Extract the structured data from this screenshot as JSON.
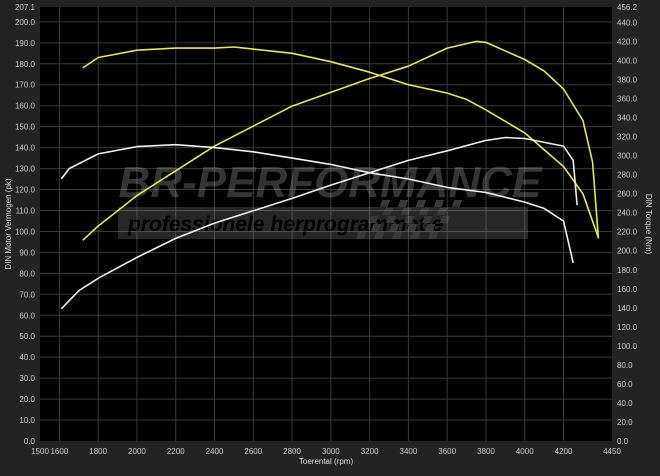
{
  "chart_data": {
    "type": "line",
    "xlabel": "Toerental (rpm)",
    "ylabel_left": "DIN Motor Vermogen (pk)",
    "ylabel_right": "DIN Torque (Nm)",
    "xlim": [
      1500,
      4450
    ],
    "ylim_left": [
      0,
      207.1
    ],
    "ylim_right": [
      0,
      456.2
    ],
    "x_ticks": [
      1500,
      1600,
      1800,
      2000,
      2200,
      2400,
      2600,
      2800,
      3000,
      3200,
      3400,
      3600,
      3800,
      4000,
      4200,
      4450
    ],
    "y_left_ticks": [
      "0.0",
      "10.0",
      "20.0",
      "30.0",
      "40.0",
      "50.0",
      "60.0",
      "70.0",
      "80.0",
      "90.0",
      "100.0",
      "110.0",
      "120.0",
      "130.0",
      "140.0",
      "150.0",
      "160.0",
      "170.0",
      "180.0",
      "190.0",
      "200.0",
      "207.1"
    ],
    "y_right_ticks": [
      "0.0",
      "20.0",
      "40.0",
      "60.0",
      "80.0",
      "100.0",
      "120.0",
      "140.0",
      "160.0",
      "180.0",
      "200.0",
      "220.0",
      "240.0",
      "260.0",
      "280.0",
      "300.0",
      "320.0",
      "340.0",
      "360.0",
      "380.0",
      "400.0",
      "420.0",
      "440.0",
      "456.2"
    ],
    "grid": true,
    "watermark": {
      "title": "BR-PERFORMANCE",
      "subtitle": "professionele herprogrammatie"
    },
    "colors": {
      "tuned": "#e8e84a",
      "stock": "#f0f0f0",
      "background": "#000000",
      "panel": "#232323"
    },
    "series": [
      {
        "axis": "left",
        "color": "#e8e84a",
        "x": [
          1720,
          1800,
          2000,
          2200,
          2400,
          2500,
          2600,
          2800,
          3000,
          3200,
          3400,
          3600,
          3700,
          3800,
          4000,
          4200,
          4300,
          4380
        ],
        "y": [
          178,
          183,
          186.5,
          187.5,
          187.5,
          188,
          187,
          185,
          181,
          176,
          170,
          166,
          163,
          158,
          147,
          131,
          118,
          97
        ]
      },
      {
        "axis": "right",
        "color": "#e8e84a",
        "x": [
          1720,
          1800,
          2000,
          2400,
          2800,
          3200,
          3400,
          3600,
          3750,
          3800,
          4000,
          4100,
          4200,
          4300,
          4350,
          4380
        ],
        "y": [
          211,
          226,
          258,
          310,
          352,
          381,
          394,
          413,
          420,
          419,
          401,
          389,
          370,
          337,
          293,
          213
        ]
      },
      {
        "axis": "left",
        "color": "#f0f0f0",
        "x": [
          1610,
          1650,
          1800,
          2000,
          2200,
          2400,
          2600,
          2800,
          3000,
          3200,
          3400,
          3600,
          3800,
          4000,
          4100,
          4200,
          4250
        ],
        "y": [
          125,
          130,
          137,
          140.5,
          141.4,
          140,
          138,
          135,
          132,
          128,
          125,
          121,
          118.6,
          114,
          111,
          105,
          85
        ]
      },
      {
        "axis": "right",
        "color": "#f0f0f0",
        "x": [
          1610,
          1700,
          1800,
          2000,
          2200,
          2400,
          2800,
          3000,
          3200,
          3400,
          3600,
          3800,
          3900,
          4000,
          4200,
          4250,
          4270
        ],
        "y": [
          139,
          158,
          171,
          193,
          213,
          229,
          255,
          269,
          282,
          295,
          305,
          316,
          319,
          318,
          310,
          295,
          248
        ]
      }
    ]
  }
}
